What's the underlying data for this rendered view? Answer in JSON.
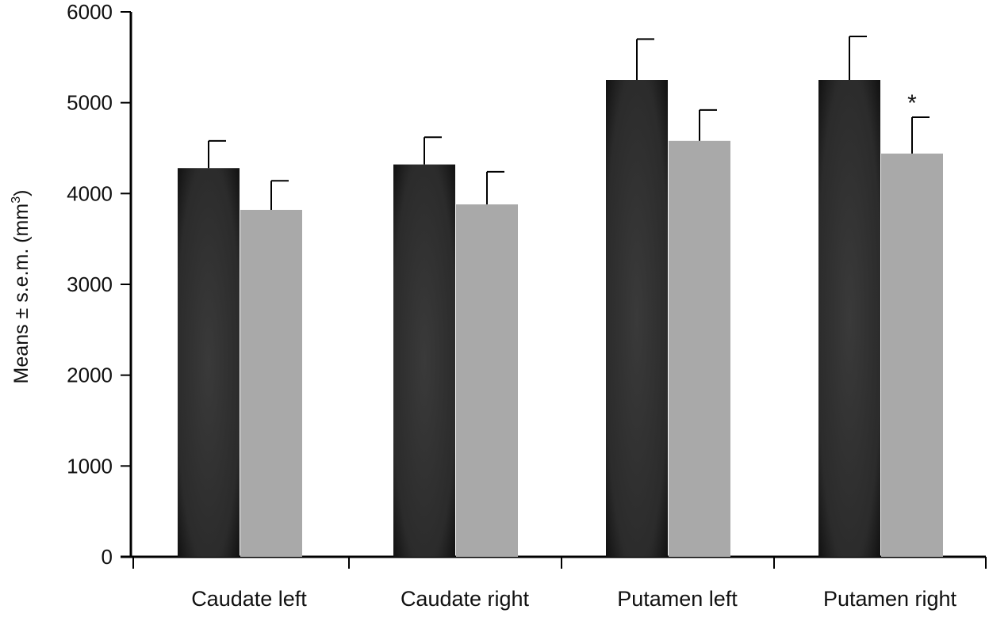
{
  "chart_data": {
    "type": "bar",
    "title": "",
    "xlabel": "",
    "ylabel": {
      "main": "Means ± s.e.m. (mm",
      "superscript": "3",
      "close": ")"
    },
    "ylim": [
      0,
      6000
    ],
    "yticks": [
      "0",
      "1000",
      "2000",
      "3000",
      "4000",
      "5000",
      "6000"
    ],
    "categories": [
      "Caudate left",
      "Caudate right",
      "Putamen left",
      "Putamen right"
    ],
    "series": [
      {
        "values": [
          4280,
          4320,
          5250,
          5250
        ],
        "errors": [
          300,
          300,
          450,
          480
        ],
        "color": "#2a2a2a"
      },
      {
        "values": [
          3820,
          3880,
          4580,
          4440
        ],
        "errors": [
          320,
          360,
          340,
          400
        ],
        "color": "#a9a9a9"
      }
    ],
    "annotations": [
      {
        "text": "*",
        "category_index": 3,
        "series_index": 1
      }
    ],
    "grid": false,
    "legend": "none"
  }
}
